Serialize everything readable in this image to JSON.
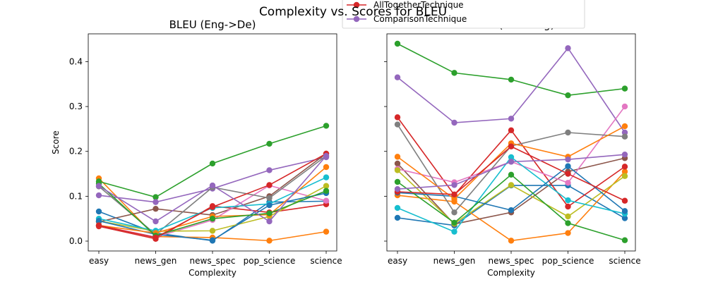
{
  "figure": {
    "suptitle": "Complexity vs. Scores for BLEU"
  },
  "legend": {
    "entries": [
      {
        "label": "AllTogetherTechnique",
        "color": "#d62728"
      },
      {
        "label": "ComparisonTechnique",
        "color": "#9467bd"
      }
    ]
  },
  "chart_data": [
    {
      "type": "line",
      "title": "BLEU (Eng->De)",
      "xlabel": "Complexity",
      "ylabel": "Score",
      "categories": [
        "easy",
        "news_gen",
        "news_spec",
        "pop_science",
        "science"
      ],
      "ylim": [
        -0.022,
        0.462
      ],
      "yticks": [
        "0.0",
        "0.1",
        "0.2",
        "0.3",
        "0.4"
      ],
      "grid": false,
      "series": [
        {
          "color": "#1f77b4",
          "values": [
            0.066,
            0.018,
            0.001,
            0.087,
            0.089
          ]
        },
        {
          "color": "#ff7f0e",
          "values": [
            0.14,
            0.01,
            0.008,
            0.001,
            0.021
          ]
        },
        {
          "color": "#2ca02c",
          "values": [
            0.133,
            0.098,
            0.173,
            0.217,
            0.257
          ]
        },
        {
          "color": "#d62728",
          "values": [
            0.033,
            0.005,
            0.078,
            0.064,
            0.082
          ]
        },
        {
          "color": "#9467bd",
          "values": [
            0.102,
            0.087,
            0.117,
            0.158,
            0.187
          ]
        },
        {
          "color": "#8c564b",
          "values": [
            0.043,
            0.072,
            0.058,
            0.1,
            0.195
          ]
        },
        {
          "color": "#e377c2",
          "values": [
            0.035,
            0.009,
            0.047,
            0.124,
            0.09
          ]
        },
        {
          "color": "#7f7f7f",
          "values": [
            0.122,
            0.015,
            0.12,
            0.096,
            0.19
          ]
        },
        {
          "color": "#bcbd22",
          "values": [
            0.045,
            0.022,
            0.023,
            0.055,
            0.123
          ]
        },
        {
          "color": "#17becf",
          "values": [
            0.05,
            0.023,
            0.074,
            0.083,
            0.142
          ]
        },
        {
          "color": "#1f77b4",
          "values": [
            0.045,
            0.015,
            0.002,
            0.08,
            0.107
          ]
        },
        {
          "color": "#ff7f0e",
          "values": [
            0.035,
            0.018,
            0.055,
            0.059,
            0.165
          ]
        },
        {
          "color": "#2ca02c",
          "values": [
            0.128,
            0.012,
            0.05,
            0.062,
            0.112
          ]
        },
        {
          "color": "#d62728",
          "values": [
            0.035,
            0.008,
            0.076,
            0.125,
            0.195
          ]
        },
        {
          "color": "#9467bd",
          "values": [
            0.123,
            0.044,
            0.124,
            0.044,
            0.19
          ]
        }
      ]
    },
    {
      "type": "line",
      "title": "BLEU (De->Eng)",
      "xlabel": "Complexity",
      "ylabel": "",
      "categories": [
        "easy",
        "news_gen",
        "news_spec",
        "pop_science",
        "science"
      ],
      "ylim": [
        -0.022,
        0.462
      ],
      "yticks": [],
      "grid": false,
      "series": [
        {
          "color": "#1f77b4",
          "values": [
            0.052,
            0.035,
            0.124,
            0.124,
            0.051
          ]
        },
        {
          "color": "#ff7f0e",
          "values": [
            0.102,
            0.088,
            0.001,
            0.018,
            0.155
          ]
        },
        {
          "color": "#2ca02c",
          "values": [
            0.44,
            0.375,
            0.36,
            0.325,
            0.34
          ]
        },
        {
          "color": "#d62728",
          "values": [
            0.276,
            0.103,
            0.247,
            0.077,
            0.166
          ]
        },
        {
          "color": "#9467bd",
          "values": [
            0.365,
            0.264,
            0.273,
            0.43,
            0.242
          ]
        },
        {
          "color": "#8c564b",
          "values": [
            0.173,
            0.038,
            0.064,
            0.155,
            0.185
          ]
        },
        {
          "color": "#e377c2",
          "values": [
            0.161,
            0.131,
            0.177,
            0.13,
            0.3
          ]
        },
        {
          "color": "#7f7f7f",
          "values": [
            0.26,
            0.064,
            0.212,
            0.242,
            0.233
          ]
        },
        {
          "color": "#bcbd22",
          "values": [
            0.158,
            0.039,
            0.125,
            0.055,
            0.145
          ]
        },
        {
          "color": "#17becf",
          "values": [
            0.074,
            0.021,
            0.187,
            0.091,
            0.061
          ]
        },
        {
          "color": "#1f77b4",
          "values": [
            0.108,
            0.1,
            0.069,
            0.167,
            0.067
          ]
        },
        {
          "color": "#ff7f0e",
          "values": [
            0.188,
            0.094,
            0.218,
            0.188,
            0.256
          ]
        },
        {
          "color": "#2ca02c",
          "values": [
            0.132,
            0.041,
            0.148,
            0.04,
            0.002
          ]
        },
        {
          "color": "#d62728",
          "values": [
            0.11,
            0.104,
            0.211,
            0.15,
            0.09
          ]
        },
        {
          "color": "#9467bd",
          "values": [
            0.116,
            0.125,
            0.177,
            0.182,
            0.193
          ]
        }
      ]
    }
  ]
}
